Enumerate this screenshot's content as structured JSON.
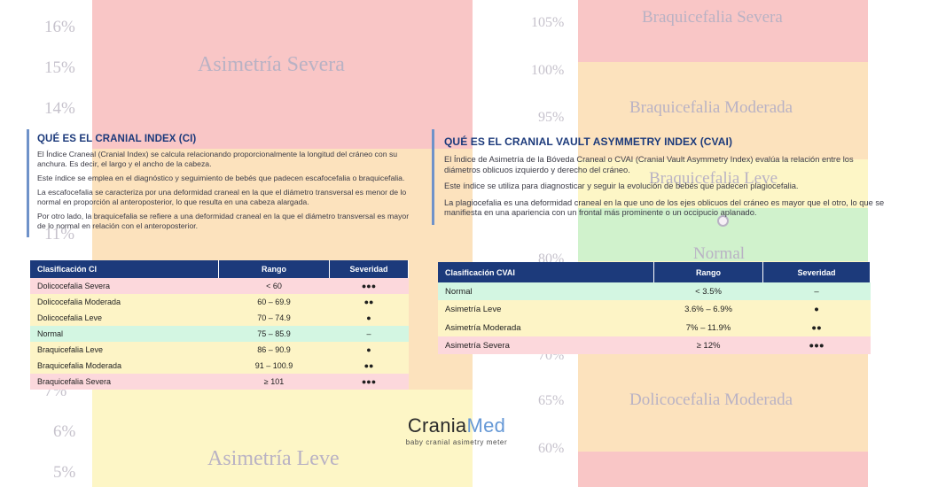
{
  "background": {
    "left_ticks": [
      "16%",
      "15%",
      "14%",
      "11%",
      "7%",
      "6%",
      "5%"
    ],
    "left_bands": [
      "Asimetría Severa",
      "Asimetría Leve"
    ],
    "right_ticks": [
      "105%",
      "100%",
      "95%",
      "80%",
      "70%",
      "65%",
      "60%"
    ],
    "right_bands": [
      "Braquicefalia Severa",
      "Braquicefalia Moderada",
      "Braquicefalia Leve",
      "Normal",
      "Dolicocefalia Moderada"
    ],
    "colors": {
      "red": "#f9c6c6",
      "orange": "#fce2bd",
      "yellow": "#fdf6c6",
      "green": "#d0f2cc"
    }
  },
  "ci_info": {
    "title": "QUÉ ES EL CRANIAL INDEX (CI)",
    "paragraphs": [
      "El Índice Craneal (Cranial Index) se calcula relacionando proporcionalmente la longitud del cráneo con su anchura. Es decir, el largo y el ancho de la cabeza.",
      "Este índice se emplea en el diagnóstico y seguimiento de bebés que padecen escafocefalia o braquicefalia.",
      "La escafocefalia se caracteriza por una deformidad craneal en la que el diámetro transversal es menor de lo normal en proporción al anteroposterior, lo que resulta en una cabeza alargada.",
      "Por otro lado, la braquicefalia se refiere a una deformidad craneal en la que el diámetro transversal es mayor de lo normal en relación con el anteroposterior."
    ]
  },
  "cvai_info": {
    "title": "QUÉ ES EL CRANIAL VAULT ASYMMETRY INDEX (CVAI)",
    "paragraphs": [
      "El Índice de Asimetría de la Bóveda Craneal o CVAI (Cranial Vault Asymmetry Index) evalúa la relación entre los diámetros oblicuos izquierdo y derecho del cráneo.",
      "Este índice se utiliza para diagnosticar y seguir la evolución de bebés que padecen plagiocefalia.",
      "La plagiocefalia es una deformidad craneal en la que uno de los ejes oblicuos del cráneo es mayor que el otro, lo que se manifiesta en una apariencia con un frontal más prominente o un occipucio aplanado."
    ]
  },
  "ci_table": {
    "headers": [
      "Clasificación CI",
      "Rango",
      "Severidad"
    ],
    "rows": [
      {
        "label": "Dolicocefalia Severa",
        "range": "< 60",
        "severity": "●●●"
      },
      {
        "label": "Dolicocefalia Moderada",
        "range": "60 – 69.9",
        "severity": "●●"
      },
      {
        "label": "Dolicocefalia Leve",
        "range": "70 – 74.9",
        "severity": "●"
      },
      {
        "label": "Normal",
        "range": "75 – 85.9",
        "severity": "–"
      },
      {
        "label": "Braquicefalia Leve",
        "range": "86 – 90.9",
        "severity": "●"
      },
      {
        "label": "Braquicefalia Moderada",
        "range": "91 – 100.9",
        "severity": "●●"
      },
      {
        "label": "Braquicefalia Severa",
        "range": "≥ 101",
        "severity": "●●●"
      }
    ]
  },
  "cvai_table": {
    "headers": [
      "Clasificación CVAI",
      "Rango",
      "Severidad"
    ],
    "rows": [
      {
        "label": "Normal",
        "range": "< 3.5%",
        "severity": "–"
      },
      {
        "label": "Asimetría Leve",
        "range": "3.6% – 6.9%",
        "severity": "●"
      },
      {
        "label": "Asimetría Moderada",
        "range": "7% – 11.9%",
        "severity": "●●"
      },
      {
        "label": "Asimetría Severa",
        "range": "≥ 12%",
        "severity": "●●●"
      }
    ]
  },
  "logo": {
    "word_main": "Crania",
    "word_accent": "Med",
    "tagline": "baby cranial asimetry meter"
  }
}
